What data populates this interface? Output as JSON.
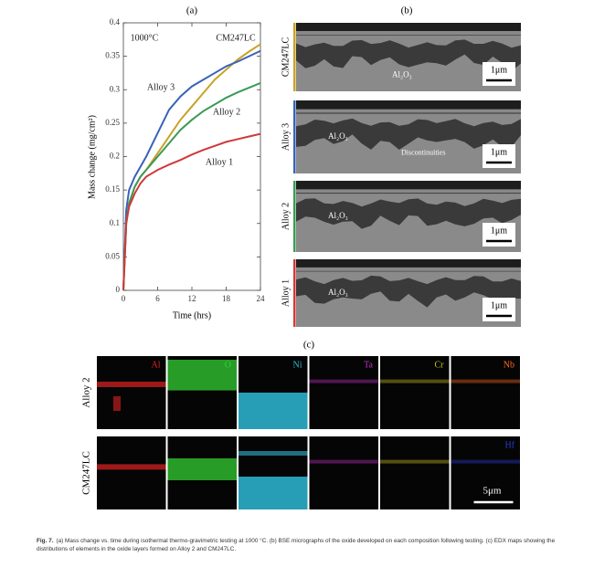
{
  "chart_data": {
    "type": "line",
    "panel_label": "(a)",
    "annotation": "1000°C",
    "xlabel": "Time (hrs)",
    "ylabel": "Mass change (mg/cm²)",
    "x": [
      0,
      0.5,
      1,
      2,
      3,
      4,
      6,
      8,
      10,
      12,
      14,
      16,
      18,
      20,
      22,
      24
    ],
    "xlim": [
      0,
      24
    ],
    "xticks": [
      0,
      6,
      12,
      18,
      24
    ],
    "ylim": [
      0,
      0.4
    ],
    "yticks": [
      0,
      0.05,
      0.1,
      0.15,
      0.2,
      0.25,
      0.3,
      0.35,
      0.4
    ],
    "series": [
      {
        "name": "CM247LC",
        "color": "#c9a227",
        "values": [
          0,
          0.1,
          0.13,
          0.155,
          0.17,
          0.18,
          0.205,
          0.23,
          0.255,
          0.275,
          0.295,
          0.315,
          0.33,
          0.345,
          0.357,
          0.368
        ]
      },
      {
        "name": "Alloy 3",
        "color": "#3a62b8",
        "values": [
          0,
          0.12,
          0.15,
          0.17,
          0.185,
          0.2,
          0.235,
          0.27,
          0.29,
          0.305,
          0.315,
          0.325,
          0.335,
          0.342,
          0.35,
          0.358
        ]
      },
      {
        "name": "Alloy 2",
        "color": "#3b9a55",
        "values": [
          0,
          0.1,
          0.13,
          0.155,
          0.17,
          0.18,
          0.2,
          0.22,
          0.24,
          0.255,
          0.268,
          0.278,
          0.288,
          0.296,
          0.303,
          0.31
        ]
      },
      {
        "name": "Alloy 1",
        "color": "#d0393b",
        "values": [
          0,
          0.1,
          0.125,
          0.145,
          0.16,
          0.17,
          0.18,
          0.188,
          0.195,
          0.203,
          0.21,
          0.216,
          0.222,
          0.226,
          0.23,
          0.234
        ]
      }
    ]
  },
  "panel_b": {
    "label": "(b)",
    "scale_bar": "1μm",
    "micrographs": [
      {
        "name": "CM247LC",
        "color": "#c9a227",
        "oxide": "Al₂O₃"
      },
      {
        "name": "Alloy 3",
        "color": "#3a62b8",
        "oxide": "Al₂O₃",
        "note": "Discontinuities"
      },
      {
        "name": "Alloy 2",
        "color": "#3b9a55",
        "oxide": "Al₂O₃"
      },
      {
        "name": "Alloy 1",
        "color": "#d0393b",
        "oxide": "Al₂O₃"
      }
    ]
  },
  "panel_c": {
    "label": "(c)",
    "scale_bar": "5μm",
    "rows": [
      {
        "name": "Alloy 2",
        "elements": [
          "Al",
          "O",
          "Ni",
          "Ta",
          "Cr",
          "Nb"
        ]
      },
      {
        "name": "CM247LC",
        "elements": [
          "Hf"
        ]
      }
    ]
  },
  "caption": {
    "label": "Fig. 7.",
    "text": "(a) Mass change vs. time during isothermal thermo-gravimetric testing at 1000 °C. (b) BSE micrographs of the oxide developed on each composition following testing. (c) EDX maps showing the distributions of elements in the oxide layers formed on Alloy 2 and CM247LC."
  }
}
